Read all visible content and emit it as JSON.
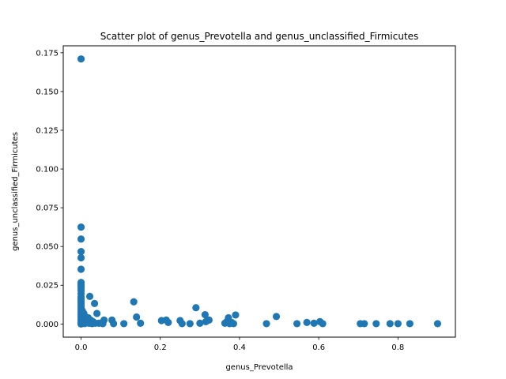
{
  "chart_data": {
    "type": "scatter",
    "title": "Scatter plot of genus_Prevotella and genus_unclassified_Firmicutes",
    "xlabel": "genus_Prevotella",
    "ylabel": "genus_unclassified_Firmicutes",
    "xlim": [
      -0.045,
      0.945
    ],
    "ylim": [
      -0.0085,
      0.1795
    ],
    "x_ticks": [
      0.0,
      0.2,
      0.4,
      0.6,
      0.8
    ],
    "x_tick_labels": [
      "0.0",
      "0.2",
      "0.4",
      "0.6",
      "0.8"
    ],
    "y_ticks": [
      0.0,
      0.025,
      0.05,
      0.075,
      0.1,
      0.125,
      0.15,
      0.175
    ],
    "y_tick_labels": [
      "0.000",
      "0.025",
      "0.050",
      "0.075",
      "0.100",
      "0.125",
      "0.150",
      "0.175"
    ],
    "grid": false,
    "color": "#1f77b4",
    "points": [
      [
        0.0,
        0.171
      ],
      [
        0.0,
        0.0625
      ],
      [
        0.0,
        0.0548
      ],
      [
        0.0,
        0.0467
      ],
      [
        0.0,
        0.0427
      ],
      [
        0.0,
        0.0353
      ],
      [
        0.0,
        0.0268
      ],
      [
        0.0,
        0.0255
      ],
      [
        0.0,
        0.0245
      ],
      [
        0.0,
        0.0232
      ],
      [
        0.0,
        0.0215
      ],
      [
        0.0,
        0.0195
      ],
      [
        0.0,
        0.0175
      ],
      [
        0.0,
        0.0162
      ],
      [
        0.0,
        0.0148
      ],
      [
        0.0,
        0.0135
      ],
      [
        0.0,
        0.012
      ],
      [
        0.0,
        0.0105
      ],
      [
        0.0,
        0.009
      ],
      [
        0.0,
        0.0075
      ],
      [
        0.0,
        0.006
      ],
      [
        0.0,
        0.0045
      ],
      [
        0.0,
        0.003
      ],
      [
        0.0,
        0.0015
      ],
      [
        0.0,
        0.0005
      ],
      [
        0.0,
        0.0
      ],
      [
        0.002,
        0.0025
      ],
      [
        0.003,
        0.0085
      ],
      [
        0.004,
        0.0058
      ],
      [
        0.005,
        0.0012
      ],
      [
        0.006,
        0.004
      ],
      [
        0.007,
        0.0068
      ],
      [
        0.008,
        0.0022
      ],
      [
        0.009,
        0.0003
      ],
      [
        0.01,
        0.0048
      ],
      [
        0.011,
        0.0015
      ],
      [
        0.012,
        0.003
      ],
      [
        0.014,
        0.0008
      ],
      [
        0.016,
        0.002
      ],
      [
        0.018,
        0.004
      ],
      [
        0.02,
        0.0005
      ],
      [
        0.022,
        0.0178
      ],
      [
        0.024,
        0.0025
      ],
      [
        0.026,
        0.001
      ],
      [
        0.028,
        0.0002
      ],
      [
        0.03,
        0.0015
      ],
      [
        0.034,
        0.0132
      ],
      [
        0.036,
        0.0005
      ],
      [
        0.04,
        0.0068
      ],
      [
        0.045,
        0.0005
      ],
      [
        0.055,
        0.0002
      ],
      [
        0.058,
        0.0025
      ],
      [
        0.078,
        0.0025
      ],
      [
        0.082,
        0.0002
      ],
      [
        0.108,
        0.0002
      ],
      [
        0.133,
        0.0143
      ],
      [
        0.14,
        0.0045
      ],
      [
        0.15,
        0.0005
      ],
      [
        0.203,
        0.0022
      ],
      [
        0.215,
        0.0025
      ],
      [
        0.22,
        0.001
      ],
      [
        0.25,
        0.0022
      ],
      [
        0.255,
        0.0002
      ],
      [
        0.275,
        0.0002
      ],
      [
        0.29,
        0.0105
      ],
      [
        0.3,
        0.0005
      ],
      [
        0.313,
        0.006
      ],
      [
        0.315,
        0.0015
      ],
      [
        0.323,
        0.0025
      ],
      [
        0.363,
        0.0005
      ],
      [
        0.368,
        0.0015
      ],
      [
        0.372,
        0.004
      ],
      [
        0.375,
        0.0002
      ],
      [
        0.38,
        0.001
      ],
      [
        0.385,
        0.0002
      ],
      [
        0.39,
        0.0058
      ],
      [
        0.468,
        0.0002
      ],
      [
        0.493,
        0.0048
      ],
      [
        0.545,
        0.0002
      ],
      [
        0.57,
        0.001
      ],
      [
        0.588,
        0.0005
      ],
      [
        0.603,
        0.0015
      ],
      [
        0.61,
        0.0002
      ],
      [
        0.705,
        0.0002
      ],
      [
        0.715,
        0.0002
      ],
      [
        0.745,
        0.0002
      ],
      [
        0.78,
        0.0002
      ],
      [
        0.8,
        0.0002
      ],
      [
        0.83,
        0.0002
      ],
      [
        0.9,
        0.0002
      ]
    ]
  }
}
